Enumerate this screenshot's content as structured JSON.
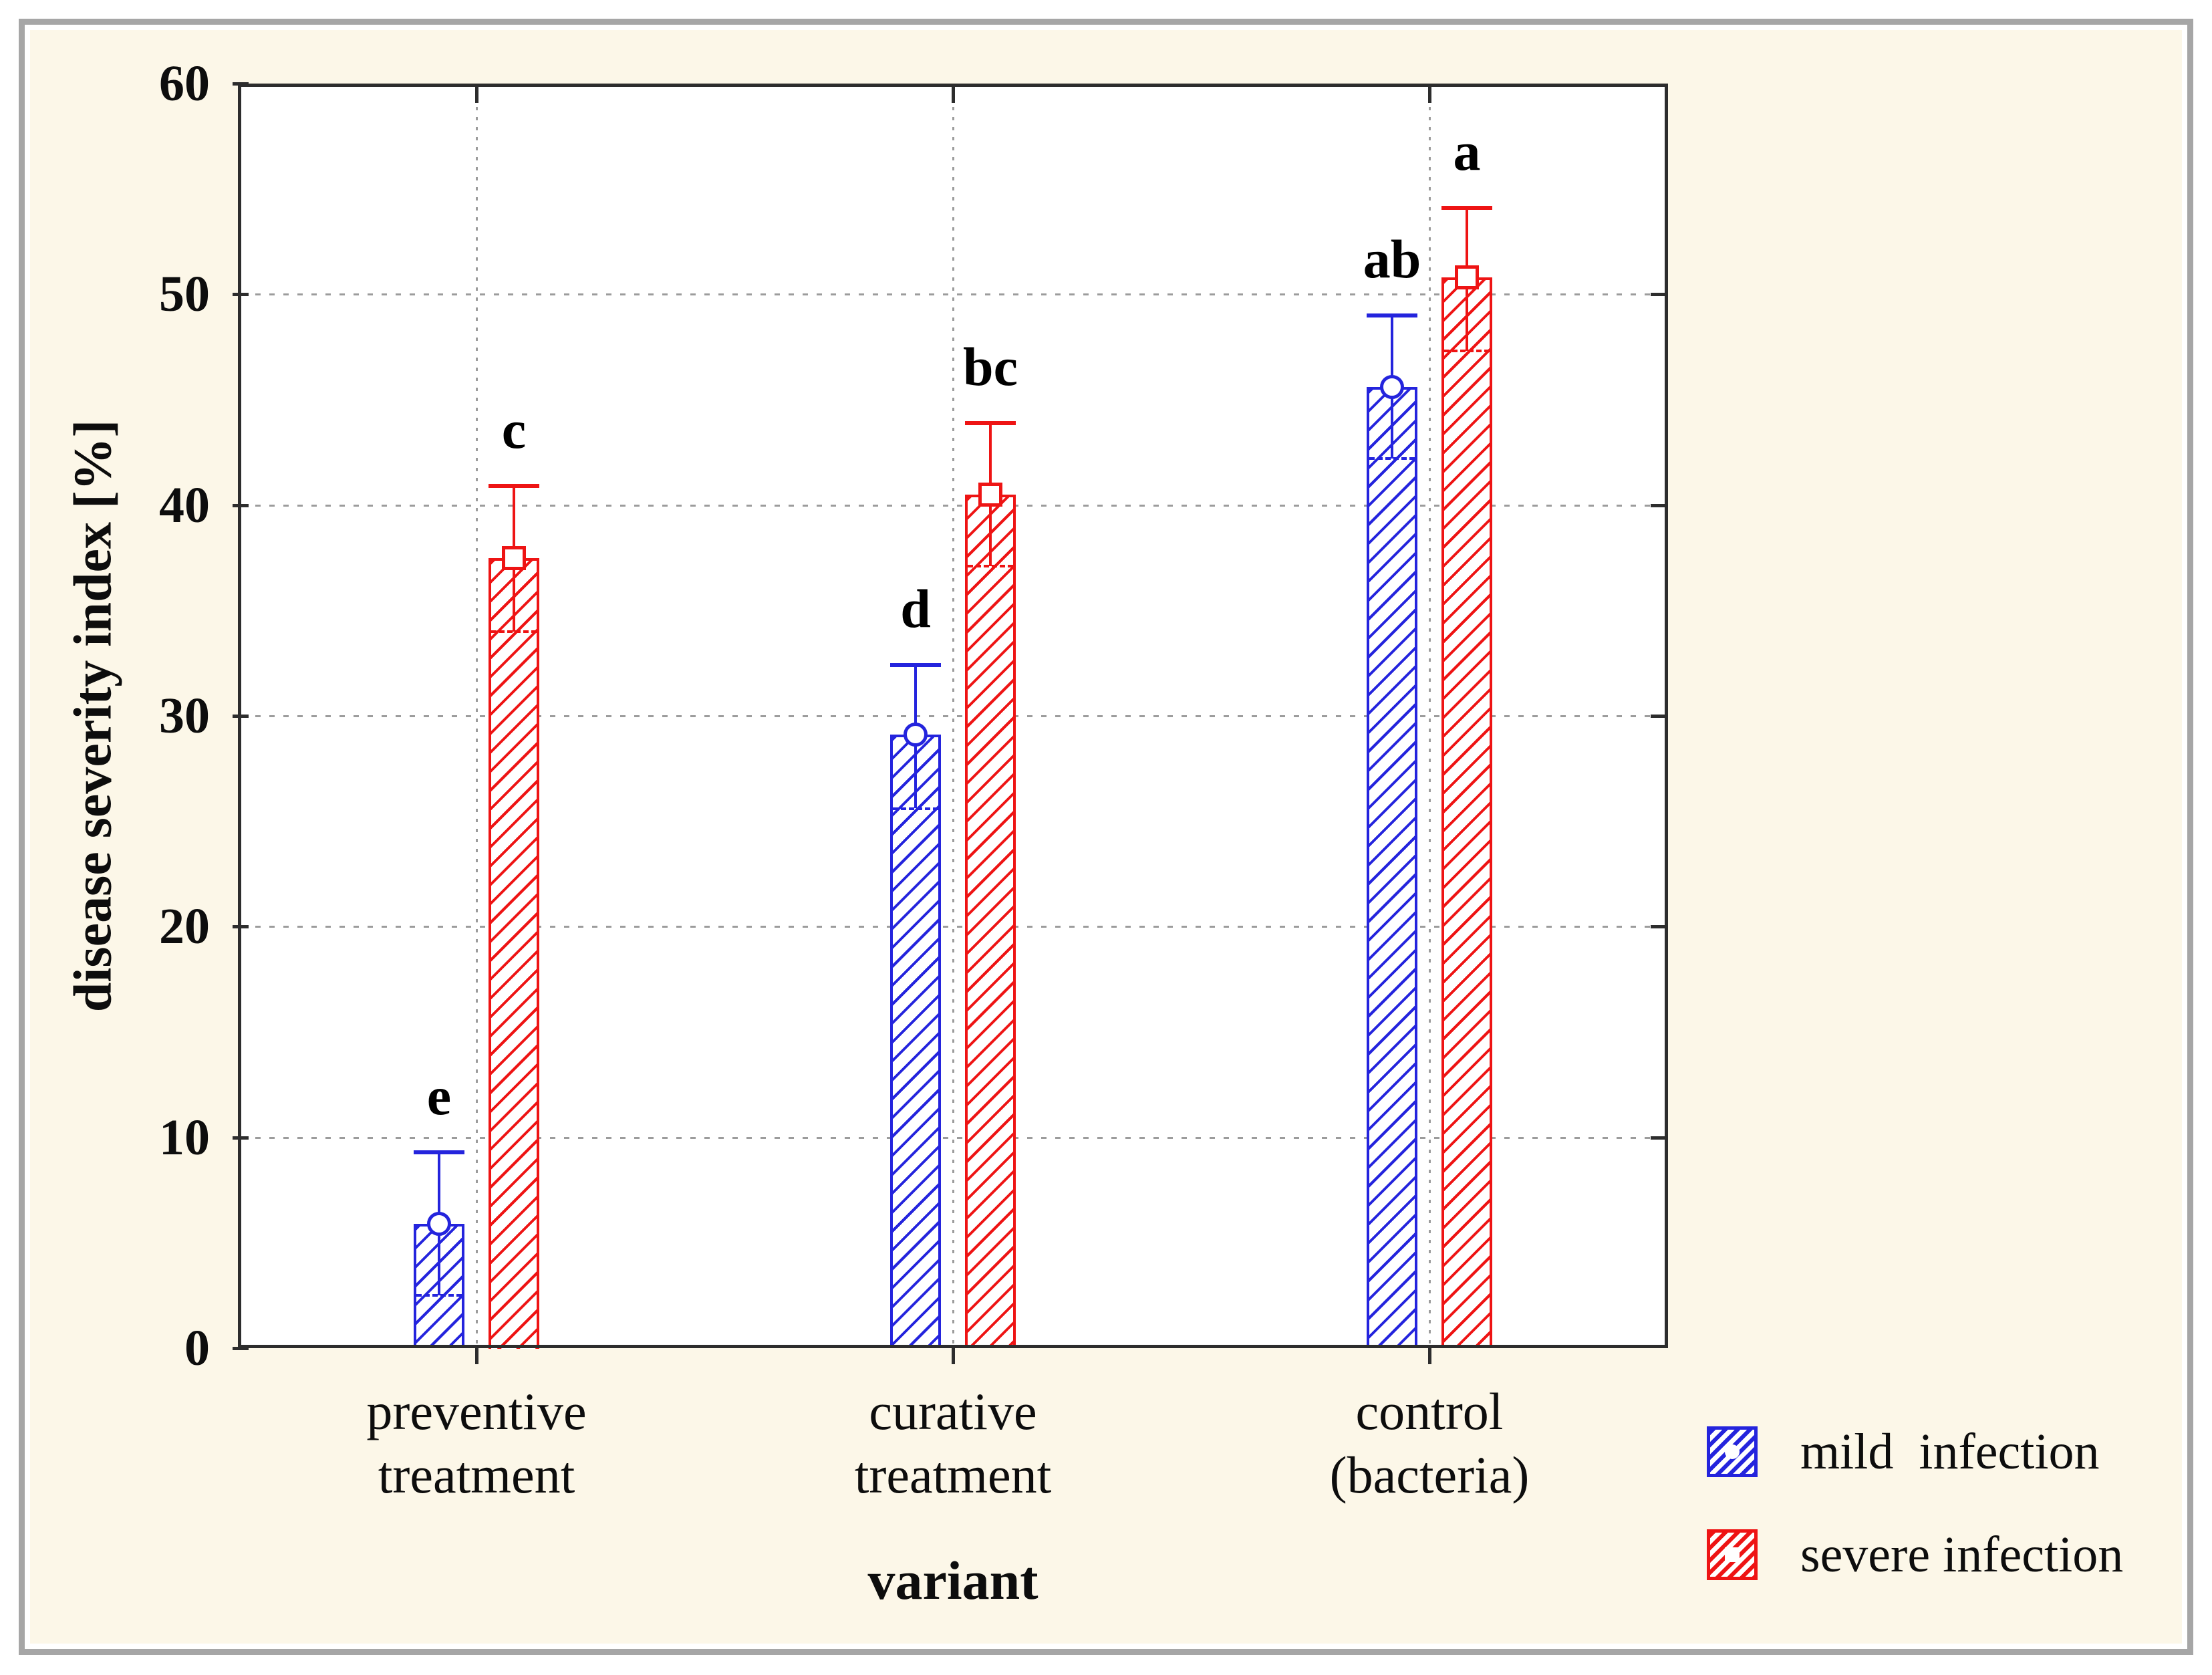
{
  "chart_data": {
    "type": "bar",
    "title": "",
    "xlabel": "variant",
    "ylabel": "disease severity index [%]",
    "ylim": [
      0,
      60
    ],
    "yticks": [
      0,
      10,
      20,
      30,
      40,
      50,
      60
    ],
    "grid_horizontal": [
      10,
      20,
      30,
      40,
      50
    ],
    "grid_vertical": "category-centers",
    "legend_position": "bottom-right",
    "categories": [
      [
        "preventive",
        "treatment"
      ],
      [
        "curative",
        "treatment"
      ],
      [
        "control",
        "(bacteria)"
      ]
    ],
    "series": [
      {
        "name": "mild infection",
        "color": "#2424dd",
        "marker": "circle",
        "means": [
          5.9,
          29.1,
          45.6
        ],
        "upper_whisker": [
          9.3,
          32.4,
          49.0
        ],
        "lower_whisker": [
          2.5,
          25.6,
          42.2
        ],
        "sig_letters": [
          "e",
          "d",
          "ab"
        ]
      },
      {
        "name": "severe infection",
        "color": "#ee1414",
        "marker": "square",
        "means": [
          37.5,
          40.5,
          50.8
        ],
        "upper_whisker": [
          40.9,
          43.9,
          54.1
        ],
        "lower_whisker": [
          34.0,
          37.1,
          47.3
        ],
        "sig_letters": [
          "c",
          "bc",
          "a"
        ]
      }
    ]
  },
  "legend": {
    "items": [
      {
        "label": "mild  infection"
      },
      {
        "label": "severe infection"
      }
    ]
  },
  "colors": {
    "panel_background": "#fcf7e8",
    "frame_border": "#a6a6a6",
    "plot_background": "#ffffff",
    "axis": "#2d2d2d",
    "gridline": "#9c9c9c",
    "text": "#0d0d0d",
    "mild_blue": "#2424dd",
    "severe_red": "#ee1414"
  }
}
